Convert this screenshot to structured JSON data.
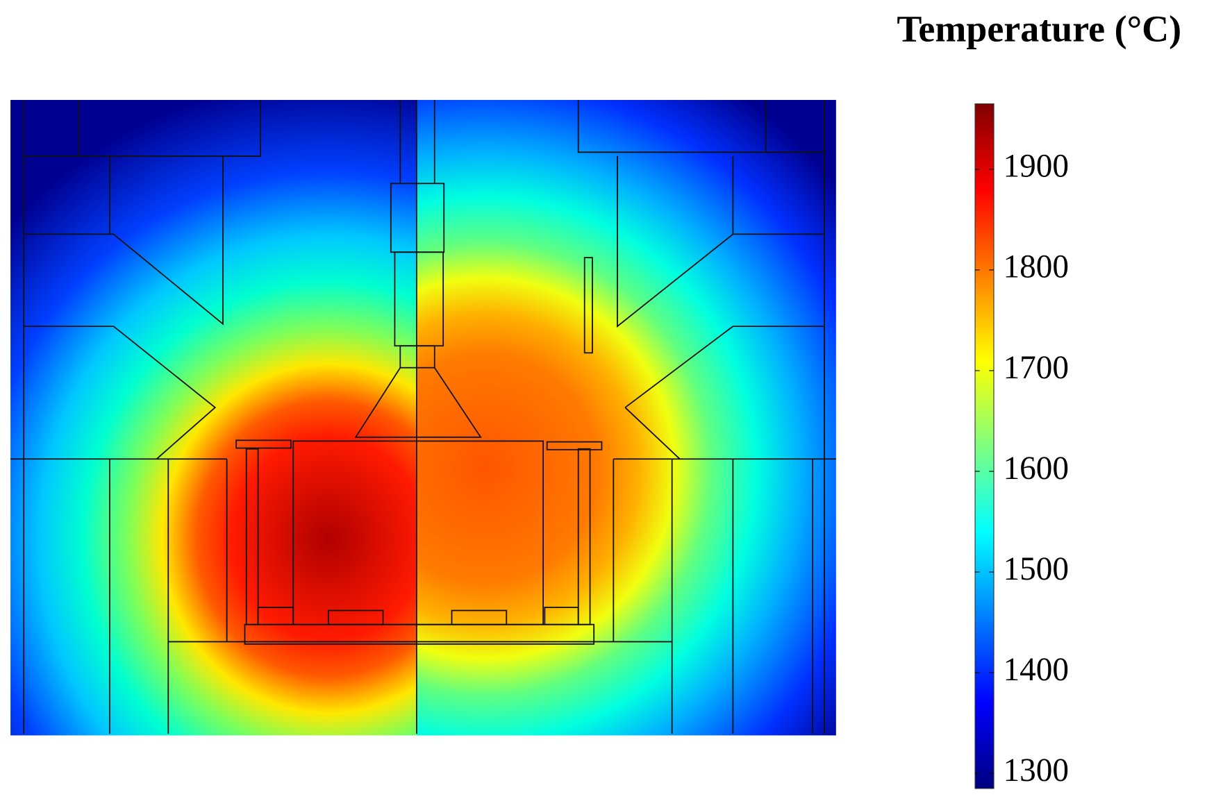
{
  "chart_data": {
    "type": "heatmap",
    "colorbar_title": "Temperature (°C)",
    "colormap": "jet",
    "clim": [
      1285,
      1965
    ],
    "cticks": [
      1300,
      1400,
      1500,
      1600,
      1700,
      1800,
      1900
    ]
  }
}
